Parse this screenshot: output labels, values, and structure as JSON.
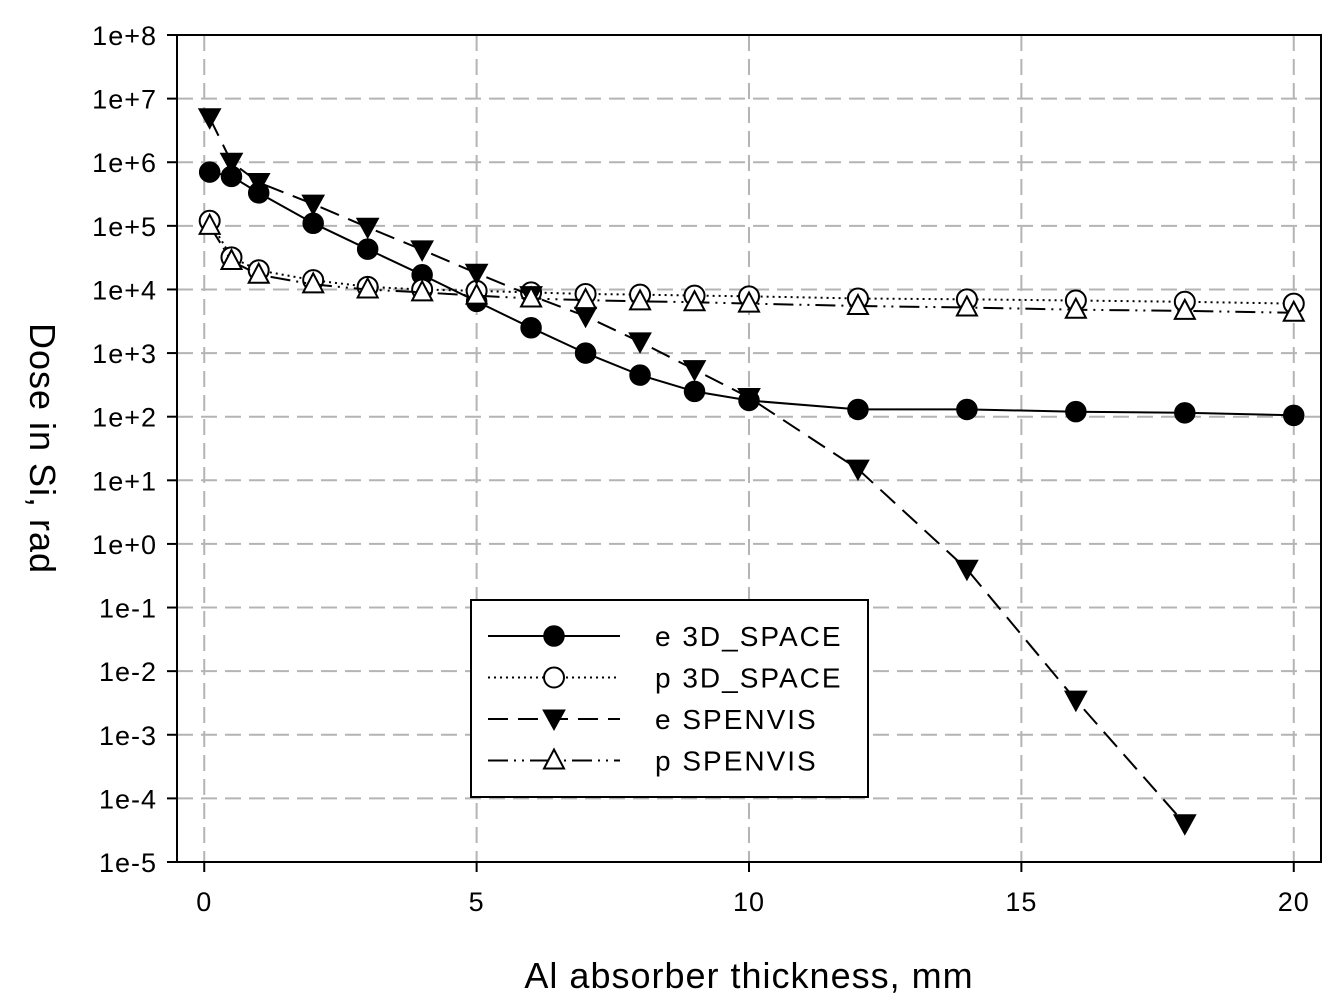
{
  "chart_data": {
    "type": "line",
    "xlabel": "Al absorber thickness, mm",
    "ylabel": "Dose in Si, rad",
    "yscale": "log",
    "xlim": [
      -0.5,
      20.5
    ],
    "ylim": [
      1e-05,
      100000000.0
    ],
    "grid": true,
    "legend_position": "lower-center",
    "x_ticks": [
      0,
      5,
      10,
      15,
      20
    ],
    "x_tick_labels": [
      "0",
      "5",
      "10",
      "15",
      "20"
    ],
    "y_ticks": [
      100000000.0,
      10000000.0,
      1000000.0,
      100000.0,
      10000.0,
      1000.0,
      100.0,
      10.0,
      1.0,
      0.1,
      0.01,
      0.001,
      0.0001,
      1e-05
    ],
    "y_tick_labels": [
      "1e+8",
      "1e+7",
      "1e+6",
      "1e+5",
      "1e+4",
      "1e+3",
      "1e+2",
      "1e+1",
      "1e+0",
      "1e-1",
      "1e-2",
      "1e-3",
      "1e-4",
      "1e-5"
    ],
    "series": [
      {
        "name": "e 3D_SPACE",
        "line": "solid",
        "marker": "filled-circle",
        "x": [
          0.1,
          0.5,
          1,
          2,
          3,
          4,
          5,
          6,
          7,
          8,
          9,
          10,
          12,
          14,
          16,
          18,
          20
        ],
        "y": [
          700000,
          600000,
          330000,
          110000,
          43000,
          17000,
          6500,
          2500,
          1000,
          450,
          250,
          180,
          130,
          130,
          120,
          115,
          105
        ]
      },
      {
        "name": "p 3D_SPACE",
        "line": "dotted",
        "marker": "open-circle",
        "x": [
          0.1,
          0.5,
          1,
          2,
          3,
          4,
          5,
          6,
          7,
          8,
          9,
          10,
          12,
          14,
          16,
          18,
          20
        ],
        "y": [
          120000,
          32000,
          20000,
          14000,
          11000,
          10000,
          9500,
          9000,
          8500,
          8300,
          8000,
          7800,
          7200,
          7000,
          6700,
          6400,
          6000
        ]
      },
      {
        "name": "e SPENVIS",
        "line": "dashed",
        "marker": "filled-triangle-down",
        "x": [
          0.1,
          0.5,
          1,
          2,
          3,
          4,
          5,
          6,
          7,
          8,
          9,
          10,
          12,
          14,
          16,
          18
        ],
        "y": [
          5000000,
          1000000,
          480000,
          220000,
          95000,
          42000,
          18000,
          8000,
          3800,
          1500,
          550,
          200,
          15,
          0.4,
          0.0035,
          4e-05
        ]
      },
      {
        "name": "p SPENVIS",
        "line": "dash-dot-dot",
        "marker": "open-triangle-up",
        "x": [
          0.1,
          0.5,
          1,
          2,
          3,
          4,
          5,
          6,
          7,
          8,
          9,
          10,
          12,
          14,
          16,
          18,
          20
        ],
        "y": [
          100000,
          28000,
          17000,
          12000,
          10000,
          9000,
          8000,
          7200,
          6800,
          6500,
          6300,
          6000,
          5500,
          5200,
          4800,
          4600,
          4300
        ]
      }
    ]
  }
}
